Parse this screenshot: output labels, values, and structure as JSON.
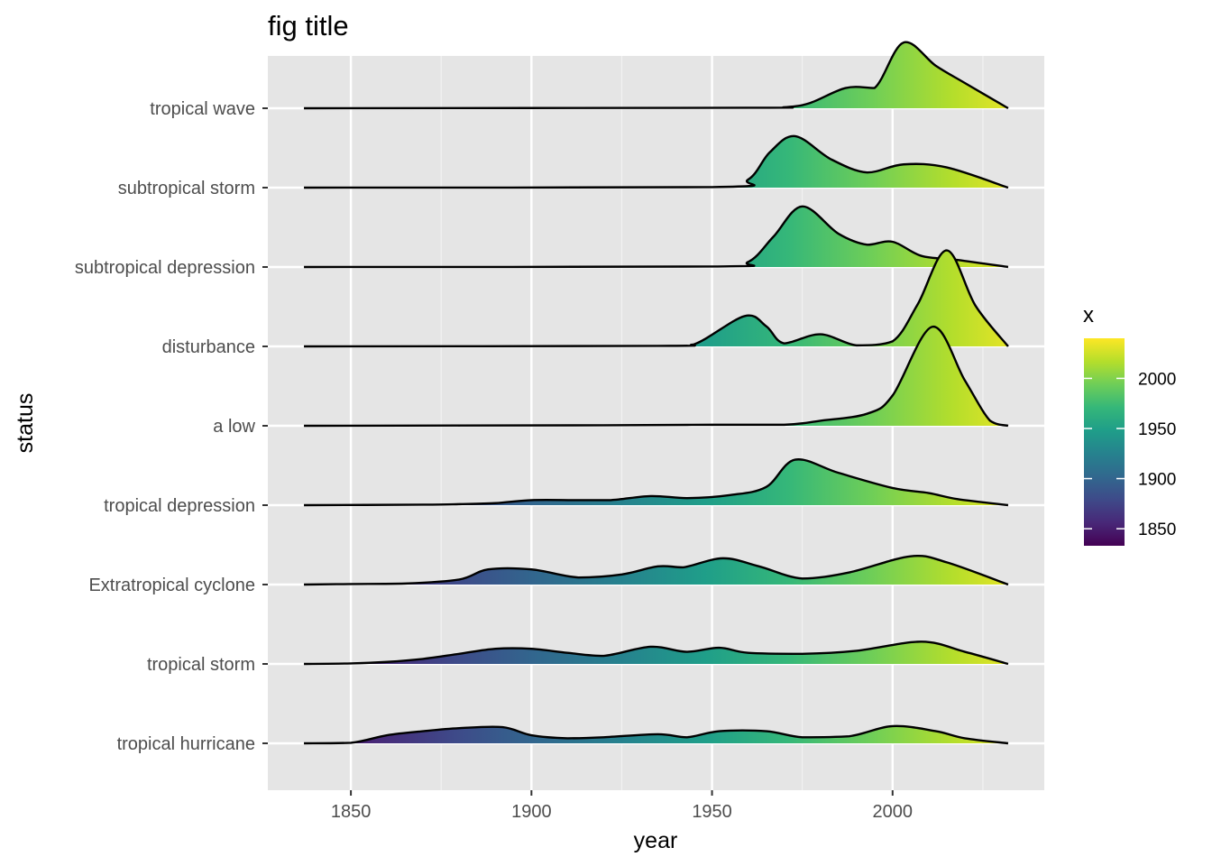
{
  "chart_data": {
    "type": "ridgeline",
    "title": "fig title",
    "xlabel": "year",
    "ylabel": "status",
    "xlim": [
      1827,
      2042
    ],
    "x_ticks": [
      1850,
      1900,
      1950,
      2000
    ],
    "x_minor_ticks": [
      1875,
      1925,
      1975,
      2025
    ],
    "x_range_drawn": [
      1837,
      2032
    ],
    "scale": 1.0,
    "categories": [
      "tropical hurricane",
      "tropical storm",
      "Extratropical cyclone",
      "tropical depression",
      "a low",
      "disturbance",
      "subtropical depression",
      "subtropical storm",
      "tropical wave"
    ],
    "series": [
      {
        "name": "tropical hurricane",
        "density_points": [
          [
            1837,
            0
          ],
          [
            1850,
            0.005
          ],
          [
            1860,
            0.08
          ],
          [
            1870,
            0.12
          ],
          [
            1880,
            0.15
          ],
          [
            1892,
            0.16
          ],
          [
            1900,
            0.08
          ],
          [
            1910,
            0.05
          ],
          [
            1920,
            0.06
          ],
          [
            1935,
            0.09
          ],
          [
            1943,
            0.06
          ],
          [
            1952,
            0.12
          ],
          [
            1965,
            0.12
          ],
          [
            1975,
            0.06
          ],
          [
            1988,
            0.07
          ],
          [
            2000,
            0.17
          ],
          [
            2012,
            0.12
          ],
          [
            2020,
            0.05
          ],
          [
            2032,
            0
          ]
        ]
      },
      {
        "name": "tropical storm",
        "density_points": [
          [
            1837,
            0
          ],
          [
            1850,
            0.005
          ],
          [
            1860,
            0.02
          ],
          [
            1870,
            0.05
          ],
          [
            1880,
            0.1
          ],
          [
            1890,
            0.15
          ],
          [
            1900,
            0.15
          ],
          [
            1910,
            0.11
          ],
          [
            1920,
            0.08
          ],
          [
            1933,
            0.17
          ],
          [
            1943,
            0.12
          ],
          [
            1952,
            0.16
          ],
          [
            1960,
            0.11
          ],
          [
            1975,
            0.1
          ],
          [
            1990,
            0.13
          ],
          [
            2008,
            0.22
          ],
          [
            2020,
            0.12
          ],
          [
            2032,
            0
          ]
        ]
      },
      {
        "name": "Extratropical cyclone",
        "density_points": [
          [
            1837,
            0
          ],
          [
            1850,
            0.005
          ],
          [
            1865,
            0.01
          ],
          [
            1880,
            0.05
          ],
          [
            1888,
            0.15
          ],
          [
            1900,
            0.15
          ],
          [
            1913,
            0.07
          ],
          [
            1925,
            0.1
          ],
          [
            1935,
            0.18
          ],
          [
            1942,
            0.17
          ],
          [
            1953,
            0.26
          ],
          [
            1963,
            0.18
          ],
          [
            1975,
            0.06
          ],
          [
            1988,
            0.12
          ],
          [
            2005,
            0.28
          ],
          [
            2015,
            0.22
          ],
          [
            2032,
            0
          ]
        ]
      },
      {
        "name": "tropical depression",
        "density_points": [
          [
            1837,
            0
          ],
          [
            1870,
            0.005
          ],
          [
            1880,
            0.01
          ],
          [
            1890,
            0.02
          ],
          [
            1900,
            0.05
          ],
          [
            1912,
            0.05
          ],
          [
            1922,
            0.05
          ],
          [
            1933,
            0.09
          ],
          [
            1943,
            0.07
          ],
          [
            1955,
            0.1
          ],
          [
            1965,
            0.18
          ],
          [
            1973,
            0.45
          ],
          [
            1985,
            0.32
          ],
          [
            2000,
            0.17
          ],
          [
            2010,
            0.12
          ],
          [
            2018,
            0.06
          ],
          [
            2032,
            0
          ]
        ]
      },
      {
        "name": "a low",
        "density_points": [
          [
            1837,
            0
          ],
          [
            1920,
            0.005
          ],
          [
            1950,
            0.01
          ],
          [
            1970,
            0.01
          ],
          [
            1980,
            0.05
          ],
          [
            1993,
            0.12
          ],
          [
            2000,
            0.3
          ],
          [
            2011,
            0.98
          ],
          [
            2020,
            0.45
          ],
          [
            2027,
            0.05
          ],
          [
            2032,
            0
          ]
        ]
      },
      {
        "name": "disturbance",
        "density_points": [
          [
            1837,
            0
          ],
          [
            1935,
            0.005
          ],
          [
            1945,
            0.02
          ],
          [
            1959,
            0.3
          ],
          [
            1965,
            0.2
          ],
          [
            1970,
            0.03
          ],
          [
            1980,
            0.12
          ],
          [
            1990,
            0.01
          ],
          [
            2000,
            0.05
          ],
          [
            2007,
            0.42
          ],
          [
            2015,
            0.95
          ],
          [
            2023,
            0.4
          ],
          [
            2032,
            0
          ]
        ]
      },
      {
        "name": "subtropical depression",
        "density_points": [
          [
            1837,
            0
          ],
          [
            1950,
            0.005
          ],
          [
            1960,
            0.05
          ],
          [
            1967,
            0.3
          ],
          [
            1975,
            0.6
          ],
          [
            1985,
            0.33
          ],
          [
            1993,
            0.22
          ],
          [
            2000,
            0.25
          ],
          [
            2008,
            0.11
          ],
          [
            2018,
            0.07
          ],
          [
            2032,
            0
          ]
        ]
      },
      {
        "name": "subtropical storm",
        "density_points": [
          [
            1837,
            0
          ],
          [
            1950,
            0.005
          ],
          [
            1960,
            0.08
          ],
          [
            1966,
            0.35
          ],
          [
            1973,
            0.51
          ],
          [
            1983,
            0.28
          ],
          [
            1993,
            0.15
          ],
          [
            2003,
            0.23
          ],
          [
            2015,
            0.2
          ],
          [
            2032,
            0
          ]
        ]
      },
      {
        "name": "tropical wave",
        "density_points": [
          [
            1837,
            0
          ],
          [
            1960,
            0.005
          ],
          [
            1970,
            0.01
          ],
          [
            1977,
            0.05
          ],
          [
            1987,
            0.2
          ],
          [
            1995,
            0.2
          ],
          [
            2003,
            0.65
          ],
          [
            2012,
            0.42
          ],
          [
            2020,
            0.25
          ],
          [
            2032,
            0
          ]
        ]
      }
    ],
    "legend": {
      "title": "x",
      "position": "right",
      "range": [
        1833,
        2040
      ],
      "labels": [
        1850,
        1900,
        1950,
        2000
      ],
      "colormap": [
        "#440154",
        "#482878",
        "#3e4a89",
        "#31688e",
        "#26828e",
        "#1f9e89",
        "#35b779",
        "#6ece58",
        "#b5de2b",
        "#fde725"
      ]
    },
    "colors": {
      "panel": "#e5e5e5",
      "grid_major": "#ffffff",
      "grid_minor": "#f2f2f2",
      "tick_label": "#4d4d4d",
      "line": "#000000"
    }
  }
}
